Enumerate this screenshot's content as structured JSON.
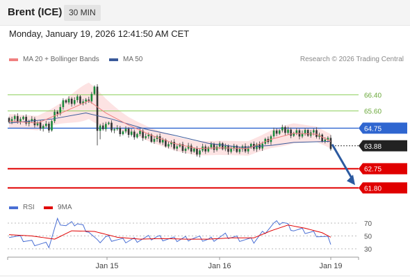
{
  "header": {
    "instrument": "Brent (ICE)",
    "interval": "30 MIN"
  },
  "timestamp": "Monday, January 19, 2026 12:41:50 AM CET",
  "legend": [
    {
      "label": "MA 20 + Bollinger Bands",
      "color": "#f08080"
    },
    {
      "label": "MA 50",
      "color": "#3a5a9a"
    }
  ],
  "credit": "Research © 2026 Trading Central",
  "rsi_legend": [
    {
      "label": "RSI",
      "color": "#4a6fd4"
    },
    {
      "label": "9MA",
      "color": "#e00000"
    }
  ],
  "chart_data": [
    {
      "type": "candlestick",
      "title": "",
      "x_tick_labels": [
        "Jan 15",
        "Jan 16",
        "Jan 19"
      ],
      "y_range": [
        61.3,
        67.2
      ],
      "current_price": "63.88",
      "levels": [
        {
          "label": "66.40",
          "value": 66.4,
          "color": "#8ccf5a",
          "style": "resistance"
        },
        {
          "label": "65.60",
          "value": 65.6,
          "color": "#8ccf5a",
          "style": "resistance"
        },
        {
          "label": "64.75",
          "value": 64.75,
          "color": "#2f66d0",
          "style": "pivot"
        },
        {
          "label": "62.75",
          "value": 62.75,
          "color": "#e00000",
          "style": "support"
        },
        {
          "label": "61.80",
          "value": 61.8,
          "color": "#e00000",
          "style": "support"
        }
      ],
      "close_path": [
        [
          0,
          65.25
        ],
        [
          4,
          65.2
        ],
        [
          8,
          65.0
        ],
        [
          12,
          64.9
        ],
        [
          14,
          64.8
        ],
        [
          16,
          65.4
        ],
        [
          20,
          66.1
        ],
        [
          24,
          66.2
        ],
        [
          27,
          66.0
        ],
        [
          30,
          66.6
        ],
        [
          31,
          64.7
        ],
        [
          34,
          65.0
        ],
        [
          38,
          64.6
        ],
        [
          42,
          64.5
        ],
        [
          46,
          64.5
        ],
        [
          50,
          64.2
        ],
        [
          54,
          64.1
        ],
        [
          58,
          63.9
        ],
        [
          62,
          63.7
        ],
        [
          66,
          63.65
        ],
        [
          70,
          63.8
        ],
        [
          74,
          63.8
        ],
        [
          78,
          63.78
        ],
        [
          82,
          63.7
        ],
        [
          86,
          63.8
        ],
        [
          90,
          64.1
        ],
        [
          94,
          64.6
        ],
        [
          98,
          64.6
        ],
        [
          102,
          64.5
        ],
        [
          106,
          64.5
        ],
        [
          110,
          64.3
        ],
        [
          112,
          64.15
        ],
        [
          113,
          63.88
        ]
      ],
      "ma20_path": [
        [
          0,
          65.1
        ],
        [
          10,
          65.0
        ],
        [
          20,
          65.6
        ],
        [
          28,
          66.1
        ],
        [
          34,
          65.5
        ],
        [
          42,
          64.9
        ],
        [
          50,
          64.4
        ],
        [
          58,
          64.0
        ],
        [
          66,
          63.75
        ],
        [
          74,
          63.78
        ],
        [
          84,
          63.75
        ],
        [
          92,
          64.2
        ],
        [
          100,
          64.5
        ],
        [
          108,
          64.45
        ],
        [
          113,
          64.1
        ]
      ],
      "ma50_path": [
        [
          0,
          65.0
        ],
        [
          15,
          65.2
        ],
        [
          27,
          65.5
        ],
        [
          36,
          65.2
        ],
        [
          48,
          64.7
        ],
        [
          58,
          64.4
        ],
        [
          70,
          64.0
        ],
        [
          82,
          63.8
        ],
        [
          92,
          63.9
        ],
        [
          100,
          64.05
        ],
        [
          113,
          64.1
        ]
      ],
      "forecast_target": 61.8
    },
    {
      "type": "line",
      "title": "RSI",
      "y_ticks": [
        "70",
        "50",
        "30"
      ],
      "y_range": [
        20,
        80
      ],
      "series": [
        {
          "name": "RSI",
          "values": [
            [
              0,
              52
            ],
            [
              8,
              40
            ],
            [
              14,
              35
            ],
            [
              17,
              74
            ],
            [
              20,
              66
            ],
            [
              24,
              70
            ],
            [
              28,
              58
            ],
            [
              31,
              40
            ],
            [
              34,
              48
            ],
            [
              40,
              42
            ],
            [
              46,
              45
            ],
            [
              52,
              48
            ],
            [
              58,
              44
            ],
            [
              64,
              47
            ],
            [
              70,
              44
            ],
            [
              76,
              50
            ],
            [
              82,
              45
            ],
            [
              86,
              42
            ],
            [
              90,
              58
            ],
            [
              93,
              68
            ],
            [
              96,
              72
            ],
            [
              100,
              60
            ],
            [
              104,
              57
            ],
            [
              108,
              53
            ],
            [
              112,
              45
            ],
            [
              113,
              40
            ]
          ]
        },
        {
          "name": "9MA",
          "values": [
            [
              0,
              52
            ],
            [
              8,
              50
            ],
            [
              16,
              45
            ],
            [
              22,
              58
            ],
            [
              30,
              57
            ],
            [
              38,
              48
            ],
            [
              46,
              45
            ],
            [
              54,
              46
            ],
            [
              62,
              45
            ],
            [
              70,
              45
            ],
            [
              78,
              47
            ],
            [
              86,
              47
            ],
            [
              92,
              58
            ],
            [
              98,
              67
            ],
            [
              104,
              62
            ],
            [
              110,
              55
            ],
            [
              113,
              48
            ]
          ]
        }
      ]
    }
  ]
}
